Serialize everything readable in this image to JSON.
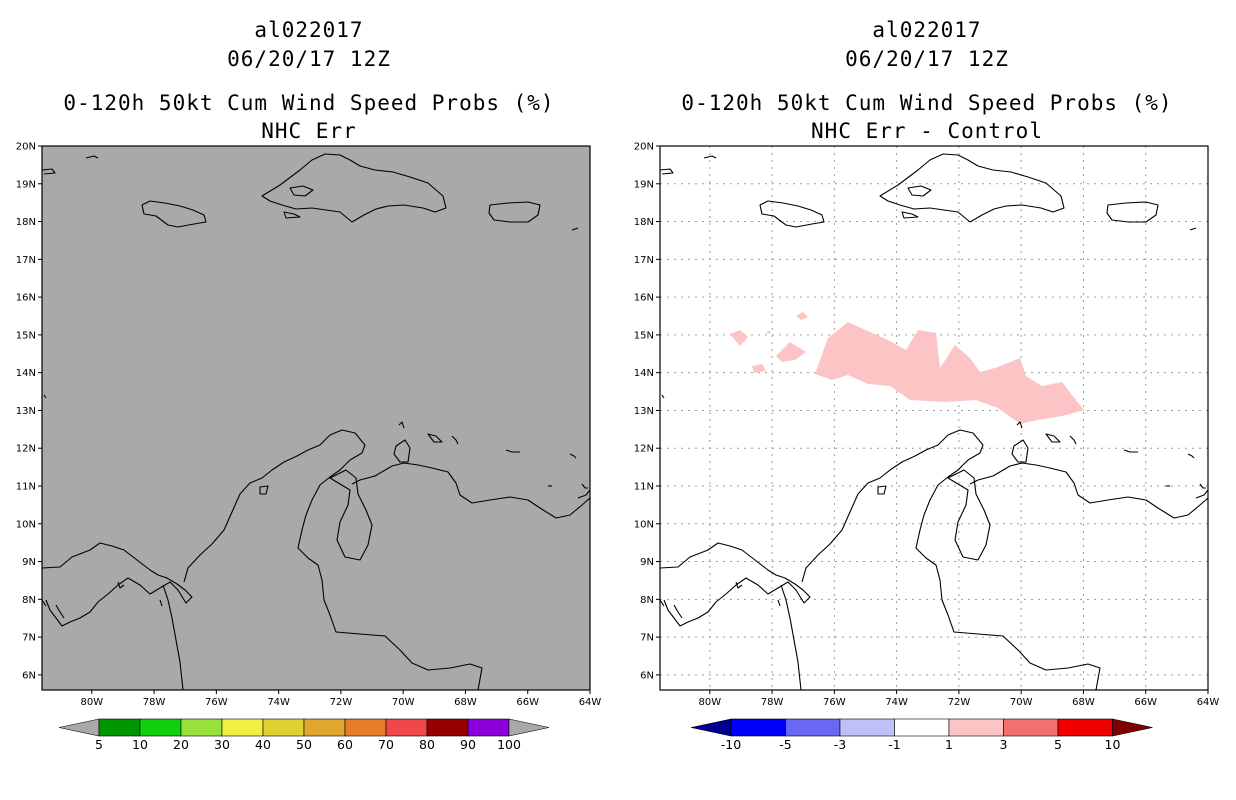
{
  "panels": [
    {
      "storm_id": "al022017",
      "datetime": "06/20/17 12Z",
      "title": "0-120h 50kt Cum Wind Speed Probs (%)",
      "subtitle": "NHC Err",
      "background": "#a9a9a9",
      "grid": false,
      "colorbar": {
        "colors": [
          "#009600",
          "#10d010",
          "#98e03c",
          "#f0f040",
          "#e0d030",
          "#e0a830",
          "#e87e28",
          "#f04848",
          "#960000",
          "#8c00dc"
        ],
        "left_arrow_color": "#a9a9a9",
        "right_arrow_color": "#a9a9a9",
        "labels": [
          "5",
          "10",
          "20",
          "30",
          "40",
          "50",
          "60",
          "70",
          "80",
          "90",
          "100"
        ]
      }
    },
    {
      "storm_id": "al022017",
      "datetime": "06/20/17 12Z",
      "title": "0-120h 50kt Cum Wind Speed Probs (%)",
      "subtitle": "NHC Err - Control",
      "background": "#ffffff",
      "grid": true,
      "colorbar": {
        "colors": [
          "#0000f8",
          "#6868f4",
          "#c0c0f8",
          "#ffffff",
          "#fcc4c4",
          "#f47070",
          "#f00000"
        ],
        "left_arrow_color": "#000090",
        "right_arrow_color": "#800000",
        "labels": [
          "-10",
          "-5",
          "-3",
          "-1",
          "1",
          "3",
          "5",
          "10"
        ]
      },
      "shaded_region_color": "#fcc4c4"
    }
  ],
  "map": {
    "lat_labels": [
      "20N",
      "19N",
      "18N",
      "17N",
      "16N",
      "15N",
      "14N",
      "13N",
      "12N",
      "11N",
      "10N",
      "9N",
      "8N",
      "7N",
      "6N"
    ],
    "lon_labels": [
      "80W",
      "78W",
      "76W",
      "74W",
      "72W",
      "70W",
      "68W",
      "66W",
      "64W"
    ],
    "lon_range": [
      -81.6,
      -64
    ],
    "lat_range": [
      5.6,
      20
    ]
  }
}
